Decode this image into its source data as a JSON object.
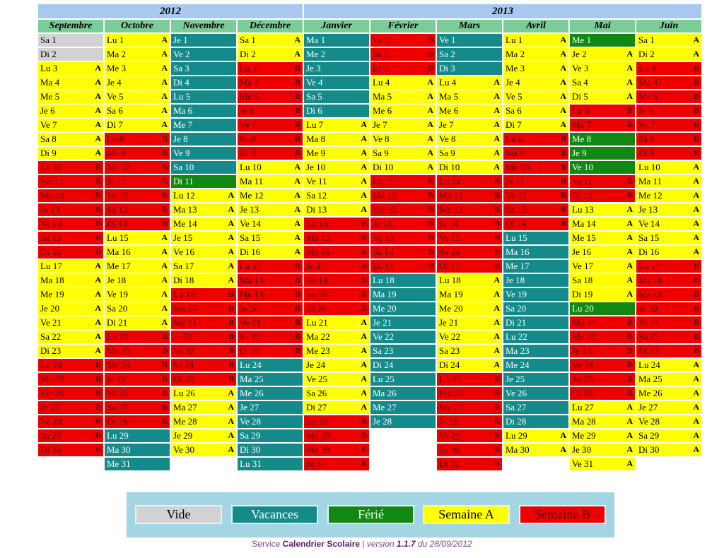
{
  "years": [
    {
      "label": "2012",
      "span": 4
    },
    {
      "label": "2013",
      "span": 6
    }
  ],
  "legend": [
    {
      "label": "Vide",
      "code": "G",
      "color": "#d2d2d2"
    },
    {
      "label": "Vacances",
      "code": "V",
      "color": "#158a8a"
    },
    {
      "label": "Férié",
      "code": "F",
      "color": "#118811"
    },
    {
      "label": "Semaine A",
      "code": "A",
      "color": "#ffff00"
    },
    {
      "label": "Semaine B",
      "code": "B",
      "color": "#ee0000"
    }
  ],
  "months": [
    {
      "name": "Septembre",
      "days": [
        [
          "Sa 1",
          "G"
        ],
        [
          "Di 2",
          "G"
        ],
        [
          "Lu 3",
          "A"
        ],
        [
          "Ma 4",
          "A"
        ],
        [
          "Me 5",
          "A"
        ],
        [
          "Je 6",
          "A"
        ],
        [
          "Ve 7",
          "A"
        ],
        [
          "Sa 8",
          "A"
        ],
        [
          "Di 9",
          "A"
        ],
        [
          "Lu 10",
          "B"
        ],
        [
          "Ma 11",
          "B"
        ],
        [
          "Me 12",
          "B"
        ],
        [
          "Je 13",
          "B"
        ],
        [
          "Ve 14",
          "B"
        ],
        [
          "Sa 15",
          "B"
        ],
        [
          "Di 16",
          "B"
        ],
        [
          "Lu 17",
          "A"
        ],
        [
          "Ma 18",
          "A"
        ],
        [
          "Me 19",
          "A"
        ],
        [
          "Je 20",
          "A"
        ],
        [
          "Ve 21",
          "A"
        ],
        [
          "Sa 22",
          "A"
        ],
        [
          "Di 23",
          "A"
        ],
        [
          "Lu 24",
          "B"
        ],
        [
          "Ma 25",
          "B"
        ],
        [
          "Me 26",
          "B"
        ],
        [
          "Je 27",
          "B"
        ],
        [
          "Ve 28",
          "B"
        ],
        [
          "Sa 29",
          "B"
        ],
        [
          "Di 30",
          "B"
        ]
      ]
    },
    {
      "name": "Octobre",
      "days": [
        [
          "Lu 1",
          "A"
        ],
        [
          "Ma 2",
          "A"
        ],
        [
          "Me 3",
          "A"
        ],
        [
          "Je 4",
          "A"
        ],
        [
          "Ve 5",
          "A"
        ],
        [
          "Sa 6",
          "A"
        ],
        [
          "Di 7",
          "A"
        ],
        [
          "Lu 8",
          "B"
        ],
        [
          "Ma 9",
          "B"
        ],
        [
          "Me 10",
          "B"
        ],
        [
          "Je 11",
          "B"
        ],
        [
          "Ve 12",
          "B"
        ],
        [
          "Sa 13",
          "B"
        ],
        [
          "Di 14",
          "B"
        ],
        [
          "Lu 15",
          "A"
        ],
        [
          "Ma 16",
          "A"
        ],
        [
          "Me 17",
          "A"
        ],
        [
          "Je 18",
          "A"
        ],
        [
          "Ve 19",
          "A"
        ],
        [
          "Sa 20",
          "A"
        ],
        [
          "Di 21",
          "A"
        ],
        [
          "Lu 22",
          "B"
        ],
        [
          "Ma 23",
          "B"
        ],
        [
          "Me 24",
          "B"
        ],
        [
          "Je 25",
          "B"
        ],
        [
          "Ve 26",
          "B"
        ],
        [
          "Sa 27",
          "B"
        ],
        [
          "Di 28",
          "B"
        ],
        [
          "Lu 29",
          "V"
        ],
        [
          "Ma 30",
          "V"
        ],
        [
          "Me 31",
          "V"
        ]
      ]
    },
    {
      "name": "Novembre",
      "days": [
        [
          "Je 1",
          "V"
        ],
        [
          "Ve 2",
          "V"
        ],
        [
          "Sa 3",
          "V"
        ],
        [
          "Di 4",
          "V"
        ],
        [
          "Lu 5",
          "V"
        ],
        [
          "Ma 6",
          "V"
        ],
        [
          "Me 7",
          "V"
        ],
        [
          "Je 8",
          "V"
        ],
        [
          "Ve 9",
          "V"
        ],
        [
          "Sa 10",
          "V"
        ],
        [
          "Di 11",
          "F"
        ],
        [
          "Lu 12",
          "A"
        ],
        [
          "Ma 13",
          "A"
        ],
        [
          "Me 14",
          "A"
        ],
        [
          "Je 15",
          "A"
        ],
        [
          "Ve 16",
          "A"
        ],
        [
          "Sa 17",
          "A"
        ],
        [
          "Di 18",
          "A"
        ],
        [
          "Lu 19",
          "B"
        ],
        [
          "Ma 20",
          "B"
        ],
        [
          "Me 21",
          "B"
        ],
        [
          "Je 22",
          "B"
        ],
        [
          "Ve 23",
          "B"
        ],
        [
          "Sa 24",
          "B"
        ],
        [
          "Di 25",
          "B"
        ],
        [
          "Lu 26",
          "A"
        ],
        [
          "Ma 27",
          "A"
        ],
        [
          "Me 28",
          "A"
        ],
        [
          "Je 29",
          "A"
        ],
        [
          "Ve 30",
          "A"
        ]
      ]
    },
    {
      "name": "Décembre",
      "days": [
        [
          "Sa 1",
          "A"
        ],
        [
          "Di 2",
          "A"
        ],
        [
          "Lu 3",
          "B"
        ],
        [
          "Ma 4",
          "B"
        ],
        [
          "Me 5",
          "B"
        ],
        [
          "Je 6",
          "B"
        ],
        [
          "Ve 7",
          "B"
        ],
        [
          "Sa 8",
          "B"
        ],
        [
          "Di 9",
          "B"
        ],
        [
          "Lu 10",
          "A"
        ],
        [
          "Ma 11",
          "A"
        ],
        [
          "Me 12",
          "A"
        ],
        [
          "Je 13",
          "A"
        ],
        [
          "Ve 14",
          "A"
        ],
        [
          "Sa 15",
          "A"
        ],
        [
          "Di 16",
          "A"
        ],
        [
          "Lu 17",
          "B"
        ],
        [
          "Ma 18",
          "B"
        ],
        [
          "Me 19",
          "B"
        ],
        [
          "Je 20",
          "B"
        ],
        [
          "Ve 21",
          "B"
        ],
        [
          "Sa 22",
          "B"
        ],
        [
          "Di 23",
          "B"
        ],
        [
          "Lu 24",
          "V"
        ],
        [
          "Ma 25",
          "V"
        ],
        [
          "Me 26",
          "V"
        ],
        [
          "Je 27",
          "V"
        ],
        [
          "Ve 28",
          "V"
        ],
        [
          "Sa 29",
          "V"
        ],
        [
          "Di 30",
          "V"
        ],
        [
          "Lu 31",
          "V"
        ]
      ]
    },
    {
      "name": "Janvier",
      "days": [
        [
          "Ma 1",
          "V"
        ],
        [
          "Me 2",
          "V"
        ],
        [
          "Je 3",
          "V"
        ],
        [
          "Ve 4",
          "V"
        ],
        [
          "Sa 5",
          "V"
        ],
        [
          "Di 6",
          "V"
        ],
        [
          "Lu 7",
          "A"
        ],
        [
          "Ma 8",
          "A"
        ],
        [
          "Me 9",
          "A"
        ],
        [
          "Je 10",
          "A"
        ],
        [
          "Ve 11",
          "A"
        ],
        [
          "Sa 12",
          "A"
        ],
        [
          "Di 13",
          "A"
        ],
        [
          "Lu 14",
          "B"
        ],
        [
          "Ma 15",
          "B"
        ],
        [
          "Me 16",
          "B"
        ],
        [
          "Je 17",
          "B"
        ],
        [
          "Ve 18",
          "B"
        ],
        [
          "Sa 19",
          "B"
        ],
        [
          "Di 20",
          "B"
        ],
        [
          "Lu 21",
          "A"
        ],
        [
          "Ma 22",
          "A"
        ],
        [
          "Me 23",
          "A"
        ],
        [
          "Je 24",
          "A"
        ],
        [
          "Ve 25",
          "A"
        ],
        [
          "Sa 26",
          "A"
        ],
        [
          "Di 27",
          "A"
        ],
        [
          "Lu 28",
          "B"
        ],
        [
          "Ma 29",
          "B"
        ],
        [
          "Me 30",
          "B"
        ],
        [
          "Je 31",
          "B"
        ]
      ]
    },
    {
      "name": "Février",
      "days": [
        [
          "Ve 1",
          "B"
        ],
        [
          "Sa 2",
          "B"
        ],
        [
          "Di 3",
          "B"
        ],
        [
          "Lu 4",
          "A"
        ],
        [
          "Ma 5",
          "A"
        ],
        [
          "Me 6",
          "A"
        ],
        [
          "Je 7",
          "A"
        ],
        [
          "Ve 8",
          "A"
        ],
        [
          "Sa 9",
          "A"
        ],
        [
          "Di 10",
          "A"
        ],
        [
          "Lu 11",
          "B"
        ],
        [
          "Ma 12",
          "B"
        ],
        [
          "Me 13",
          "B"
        ],
        [
          "Je 14",
          "B"
        ],
        [
          "Ve 15",
          "B"
        ],
        [
          "Sa 16",
          "B"
        ],
        [
          "Di 17",
          "B"
        ],
        [
          "Lu 18",
          "V"
        ],
        [
          "Ma 19",
          "V"
        ],
        [
          "Me 20",
          "V"
        ],
        [
          "Je 21",
          "V"
        ],
        [
          "Ve 22",
          "V"
        ],
        [
          "Sa 23",
          "V"
        ],
        [
          "Di 24",
          "V"
        ],
        [
          "Lu 25",
          "V"
        ],
        [
          "Ma 26",
          "V"
        ],
        [
          "Me 27",
          "V"
        ],
        [
          "Je 28",
          "V"
        ]
      ]
    },
    {
      "name": "Mars",
      "days": [
        [
          "Ve 1",
          "V"
        ],
        [
          "Sa 2",
          "V"
        ],
        [
          "Di 3",
          "V"
        ],
        [
          "Lu 4",
          "A"
        ],
        [
          "Ma 5",
          "A"
        ],
        [
          "Me 6",
          "A"
        ],
        [
          "Je 7",
          "A"
        ],
        [
          "Ve 8",
          "A"
        ],
        [
          "Sa 9",
          "A"
        ],
        [
          "Di 10",
          "A"
        ],
        [
          "Lu 11",
          "B"
        ],
        [
          "Ma 12",
          "B"
        ],
        [
          "Me 13",
          "B"
        ],
        [
          "Je 14",
          "B"
        ],
        [
          "Ve 15",
          "B"
        ],
        [
          "Sa 16",
          "B"
        ],
        [
          "Di 17",
          "B"
        ],
        [
          "Lu 18",
          "A"
        ],
        [
          "Ma 19",
          "A"
        ],
        [
          "Me 20",
          "A"
        ],
        [
          "Je 21",
          "A"
        ],
        [
          "Ve 22",
          "A"
        ],
        [
          "Sa 23",
          "A"
        ],
        [
          "Di 24",
          "A"
        ],
        [
          "Lu 25",
          "B"
        ],
        [
          "Ma 26",
          "B"
        ],
        [
          "Me 27",
          "B"
        ],
        [
          "Je 28",
          "B"
        ],
        [
          "Ve 29",
          "B"
        ],
        [
          "Sa 30",
          "B"
        ],
        [
          "Di 31",
          "B"
        ]
      ]
    },
    {
      "name": "Avril",
      "days": [
        [
          "Lu 1",
          "A"
        ],
        [
          "Ma 2",
          "A"
        ],
        [
          "Me 3",
          "A"
        ],
        [
          "Je 4",
          "A"
        ],
        [
          "Ve 5",
          "A"
        ],
        [
          "Sa 6",
          "A"
        ],
        [
          "Di 7",
          "A"
        ],
        [
          "Lu 8",
          "B"
        ],
        [
          "Ma 9",
          "B"
        ],
        [
          "Me 10",
          "B"
        ],
        [
          "Je 11",
          "B"
        ],
        [
          "Ve 12",
          "B"
        ],
        [
          "Sa 13",
          "B"
        ],
        [
          "Di 14",
          "B"
        ],
        [
          "Lu 15",
          "V"
        ],
        [
          "Ma 16",
          "V"
        ],
        [
          "Me 17",
          "V"
        ],
        [
          "Je 18",
          "V"
        ],
        [
          "Ve 19",
          "V"
        ],
        [
          "Sa 20",
          "V"
        ],
        [
          "Di 21",
          "V"
        ],
        [
          "Lu 22",
          "V"
        ],
        [
          "Ma 23",
          "V"
        ],
        [
          "Me 24",
          "V"
        ],
        [
          "Je 25",
          "V"
        ],
        [
          "Ve 26",
          "V"
        ],
        [
          "Sa 27",
          "V"
        ],
        [
          "Di 28",
          "V"
        ],
        [
          "Lu 29",
          "A"
        ],
        [
          "Ma 30",
          "A"
        ]
      ]
    },
    {
      "name": "Mai",
      "days": [
        [
          "Me 1",
          "F"
        ],
        [
          "Je 2",
          "A"
        ],
        [
          "Ve 3",
          "A"
        ],
        [
          "Sa 4",
          "A"
        ],
        [
          "Di 5",
          "A"
        ],
        [
          "Lu 6",
          "B"
        ],
        [
          "Ma 7",
          "B"
        ],
        [
          "Me 8",
          "F"
        ],
        [
          "Je 9",
          "F"
        ],
        [
          "Ve 10",
          "F"
        ],
        [
          "Sa 11",
          "B"
        ],
        [
          "Di 12",
          "B"
        ],
        [
          "Lu 13",
          "A"
        ],
        [
          "Ma 14",
          "A"
        ],
        [
          "Me 15",
          "A"
        ],
        [
          "Je 16",
          "A"
        ],
        [
          "Ve 17",
          "A"
        ],
        [
          "Sa 18",
          "A"
        ],
        [
          "Di 19",
          "A"
        ],
        [
          "Lu 20",
          "F"
        ],
        [
          "Ma 21",
          "B"
        ],
        [
          "Me 22",
          "B"
        ],
        [
          "Je 23",
          "B"
        ],
        [
          "Ve 24",
          "B"
        ],
        [
          "Sa 25",
          "B"
        ],
        [
          "Di 26",
          "B"
        ],
        [
          "Lu 27",
          "A"
        ],
        [
          "Ma 28",
          "A"
        ],
        [
          "Me 29",
          "A"
        ],
        [
          "Je 30",
          "A"
        ],
        [
          "Ve 31",
          "A"
        ]
      ]
    },
    {
      "name": "Juin",
      "days": [
        [
          "Sa 1",
          "A"
        ],
        [
          "Di 2",
          "A"
        ],
        [
          "Lu 3",
          "B"
        ],
        [
          "Ma 4",
          "B"
        ],
        [
          "Me 5",
          "B"
        ],
        [
          "Je 6",
          "B"
        ],
        [
          "Ve 7",
          "B"
        ],
        [
          "Sa 8",
          "B"
        ],
        [
          "Di 9",
          "B"
        ],
        [
          "Lu 10",
          "A"
        ],
        [
          "Ma 11",
          "A"
        ],
        [
          "Me 12",
          "A"
        ],
        [
          "Je 13",
          "A"
        ],
        [
          "Ve 14",
          "A"
        ],
        [
          "Sa 15",
          "A"
        ],
        [
          "Di 16",
          "A"
        ],
        [
          "Lu 17",
          "B"
        ],
        [
          "Ma 18",
          "B"
        ],
        [
          "Me 19",
          "B"
        ],
        [
          "Je 20",
          "B"
        ],
        [
          "Ve 21",
          "B"
        ],
        [
          "Sa 22",
          "B"
        ],
        [
          "Di 23",
          "B"
        ],
        [
          "Lu 24",
          "A"
        ],
        [
          "Ma 25",
          "A"
        ],
        [
          "Me 26",
          "A"
        ],
        [
          "Je 27",
          "A"
        ],
        [
          "Ve 28",
          "A"
        ],
        [
          "Sa 29",
          "A"
        ],
        [
          "Di 30",
          "A"
        ]
      ]
    }
  ],
  "footer": {
    "service": "Service",
    "name": "Calendrier Scolaire",
    "sep": "|",
    "version_label": "version",
    "version": "1.1.7",
    "date_label": "du 28/09/2012"
  }
}
